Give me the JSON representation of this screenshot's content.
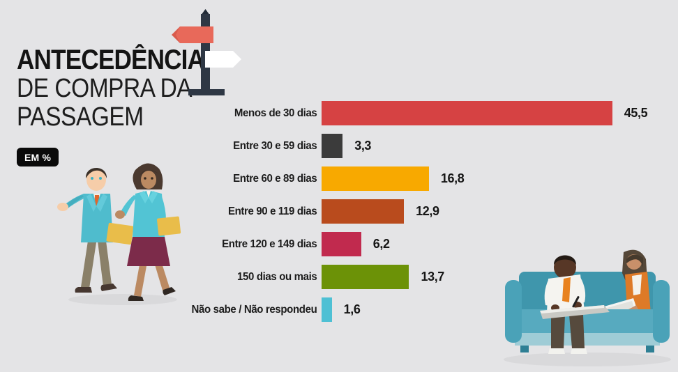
{
  "title": {
    "line1": "ANTECEDÊNCIA",
    "line2": "DE COMPRA DA",
    "line3": "PASSAGEM"
  },
  "unit_badge_label": "EM %",
  "chart_data": {
    "type": "bar",
    "orientation": "horizontal",
    "unit": "%",
    "title": "Antecedência de compra da passagem (em %)",
    "categories": [
      "Menos de 30 dias",
      "Entre 30 e 59 dias",
      "Entre 60 e 89 dias",
      "Entre 90 e 119 dias",
      "Entre 120 e 149 dias",
      "150 dias ou mais",
      "Não sabe / Não respondeu"
    ],
    "values": [
      45.5,
      3.3,
      16.8,
      12.9,
      6.2,
      13.7,
      1.6
    ],
    "value_labels": [
      "45,5",
      "3,3",
      "16,8",
      "12,9",
      "6,2",
      "13,7",
      "1,6"
    ],
    "bar_colors": [
      "#d64243",
      "#3b3b3b",
      "#f8a900",
      "#b94b1d",
      "#c12a4e",
      "#6c9207",
      "#4ec0d4"
    ],
    "xlim": [
      0,
      50
    ],
    "grid": false,
    "legend": false
  },
  "icons": {
    "signpost": "signpost-icon",
    "people_walking": "two-business-people-walking-illustration",
    "couch_scene": "two-people-on-couch-illustration"
  },
  "colors": {
    "background": "#e4e4e6",
    "badge_bg": "#0a0a0a",
    "badge_text": "#ffffff",
    "signpost_post": "#2e3744",
    "signpost_arrow_left": "#e8695a",
    "signpost_arrow_right": "#ffffff",
    "title_text": "#141414"
  }
}
